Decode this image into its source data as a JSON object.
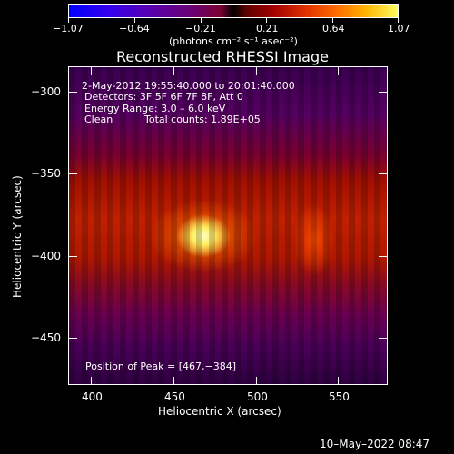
{
  "colorbar": {
    "ticks": [
      "−1.07",
      "−0.64",
      "−0.21",
      "0.21",
      "0.64",
      "1.07"
    ],
    "units": "(photons cm⁻² s⁻¹ asec⁻²)"
  },
  "title": "Reconstructed RHESSI Image",
  "info": {
    "time_range": "2-May-2012 19:55:40.000 to 20:01:40.000",
    "detectors": "Detectors: 3F 5F 6F 7F 8F, Att 0",
    "energy_range": "Energy Range: 3.0 – 6.0 keV",
    "clean": "Clean",
    "total_counts": "Total counts: 1.89E+05",
    "peak": "Position of Peak = [467,−384]"
  },
  "axes": {
    "xlabel": "Heliocentric X (arcsec)",
    "ylabel": "Heliocentric Y (arcsec)",
    "xticks": [
      "400",
      "450",
      "500",
      "550"
    ],
    "yticks": [
      "−300",
      "−350",
      "−400",
      "−450"
    ]
  },
  "timestamp": "10–May–2022 08:47",
  "colors": {
    "peak": "#ffffc0",
    "background": "#000000",
    "low_flux": "#3a0050"
  }
}
